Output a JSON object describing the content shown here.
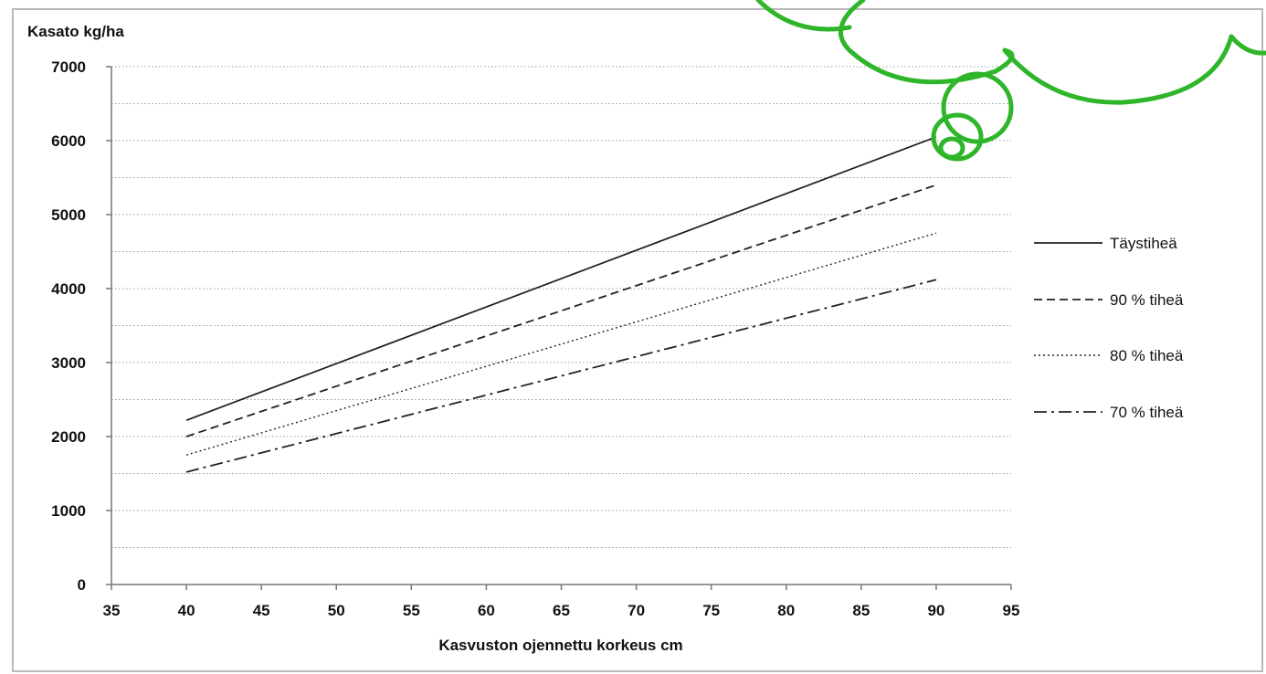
{
  "chart_data": {
    "type": "line",
    "title": "Kasato kg/ha",
    "xlabel": "Kasvuston ojennettu korkeus cm",
    "ylabel": "",
    "xlim": [
      35,
      95
    ],
    "ylim": [
      0,
      7000
    ],
    "x_ticks": [
      "35",
      "40",
      "45",
      "50",
      "55",
      "60",
      "65",
      "70",
      "75",
      "80",
      "85",
      "90",
      "95"
    ],
    "y_ticks": [
      "0",
      "1000",
      "2000",
      "3000",
      "4000",
      "5000",
      "6000",
      "7000"
    ],
    "grid": "horizontal dotted, every 500",
    "legend_position": "right",
    "series": [
      {
        "name": "Täystiheä",
        "dash": "solid",
        "x": [
          40,
          90
        ],
        "y": [
          2220,
          6050
        ]
      },
      {
        "name": "90 % tiheä",
        "dash": "dashed",
        "x": [
          40,
          90
        ],
        "y": [
          2000,
          5400
        ]
      },
      {
        "name": "80 % tiheä",
        "dash": "dotted",
        "x": [
          40,
          90
        ],
        "y": [
          1750,
          4750
        ]
      },
      {
        "name": "70 % tiheä",
        "dash": "dashdot",
        "x": [
          40,
          90
        ],
        "y": [
          1520,
          4120
        ]
      }
    ],
    "colors": {
      "line": "#222222",
      "grid": "#9a9a9a",
      "decoration": "#2fb52a"
    }
  }
}
